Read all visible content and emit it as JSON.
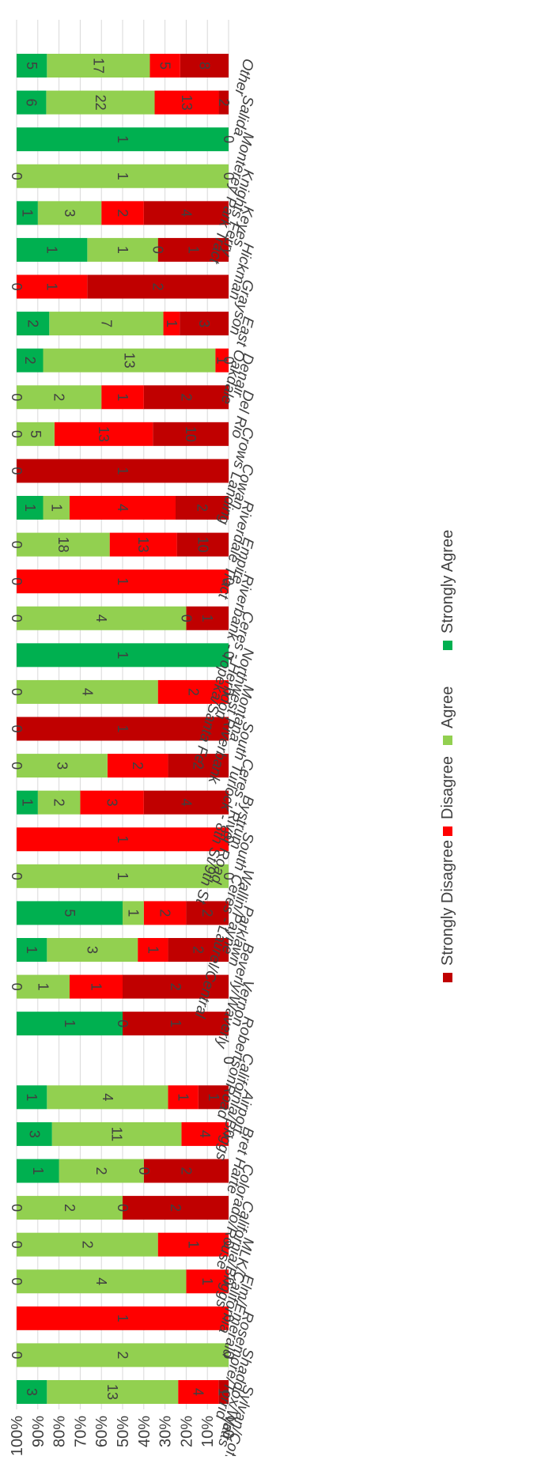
{
  "chart_data": {
    "type": "bar",
    "stacked": true,
    "percent_scale": true,
    "orientation": "rotated-90-clockwise",
    "title": "",
    "xlabel": "",
    "ylabel": "",
    "ylim": [
      0,
      100
    ],
    "y_ticks": [
      "0%",
      "10%",
      "20%",
      "30%",
      "40%",
      "50%",
      "60%",
      "70%",
      "80%",
      "90%",
      "100%"
    ],
    "grid": true,
    "legend_position": "bottom",
    "categories": [
      "Sylvan/Coffee",
      "Shaddox/Watts",
      "Rosemore/Torrid",
      "Elm/Emerald",
      "MLK/California",
      "California/Briggs",
      "Colorado/Rouse",
      "Bret Harte",
      "Airport",
      "California/Briggs",
      "RobertsonRoad",
      "Vernon",
      "Beverly/Waverly",
      "Parklawn",
      "Wallin/Payne",
      "South Ceres - Laurel/Central",
      "Bystrum",
      "Ceres - River Road",
      "South Turlock - 8th St/9th St",
      "Montana",
      "Northwest Riverbank",
      "Ceres - Herndon",
      "Riverbank - Topeka/Santa Fe",
      "Empire",
      "Riverdale Tract",
      "Cowan",
      "Crows Landing",
      "Del Rio",
      "Denair",
      "East Oakdale",
      "Grayson",
      "Hickman",
      "Keyes",
      "Knights Ferry",
      "Monterey Park Tract",
      "Salida",
      "Other"
    ],
    "series": [
      {
        "name": "Strongly Disagree",
        "color": "#c00000",
        "values": [
          1,
          0,
          0,
          0,
          0,
          2,
          2,
          0,
          1,
          0,
          1,
          2,
          2,
          2,
          0,
          0,
          4,
          2,
          1,
          0,
          0,
          1,
          0,
          10,
          2,
          1,
          10,
          2,
          0,
          3,
          2,
          1,
          4,
          0,
          0,
          2,
          8
        ]
      },
      {
        "name": "Disagree",
        "color": "#ff0000",
        "values": [
          4,
          0,
          1,
          1,
          1,
          0,
          0,
          4,
          1,
          0,
          0,
          1,
          1,
          2,
          0,
          1,
          3,
          2,
          0,
          2,
          0,
          0,
          1,
          13,
          4,
          0,
          13,
          1,
          1,
          1,
          1,
          0,
          2,
          0,
          0,
          13,
          5
        ]
      },
      {
        "name": "Agree",
        "color": "#92d050",
        "values": [
          13,
          2,
          0,
          4,
          2,
          2,
          2,
          11,
          4,
          0,
          0,
          1,
          3,
          1,
          1,
          0,
          2,
          3,
          0,
          4,
          0,
          4,
          0,
          18,
          1,
          0,
          5,
          2,
          13,
          7,
          0,
          1,
          3,
          1,
          0,
          22,
          17
        ]
      },
      {
        "name": "Strongly Agree",
        "color": "#00b050",
        "values": [
          3,
          0,
          0,
          0,
          0,
          0,
          1,
          3,
          1,
          0,
          1,
          0,
          1,
          5,
          0,
          0,
          1,
          0,
          0,
          0,
          1,
          0,
          0,
          0,
          1,
          0,
          0,
          0,
          2,
          2,
          0,
          1,
          1,
          0,
          1,
          6,
          5
        ]
      }
    ],
    "value_labels": [
      [
        "1",
        "4",
        "13",
        "3"
      ],
      [
        "0",
        "",
        "2",
        "0"
      ],
      [
        "0",
        "1",
        "",
        ""
      ],
      [
        "0",
        "1",
        "4",
        "0"
      ],
      [
        "0",
        "1",
        "2",
        "0"
      ],
      [
        "2",
        "0",
        "2",
        "0"
      ],
      [
        "2",
        "0",
        "2",
        "1"
      ],
      [
        "0",
        "4",
        "11",
        "3"
      ],
      [
        "1",
        "1",
        "4",
        "1"
      ],
      [
        "0",
        "",
        "",
        "0"
      ],
      [
        "1",
        "0",
        "",
        "1"
      ],
      [
        "2",
        "1",
        "1",
        "0"
      ],
      [
        "2",
        "1",
        "3",
        "1"
      ],
      [
        "2",
        "2",
        "1",
        "5"
      ],
      [
        "0",
        "",
        "1",
        "0"
      ],
      [
        "0",
        "1",
        "",
        ""
      ],
      [
        "4",
        "3",
        "2",
        "1"
      ],
      [
        "2",
        "2",
        "3",
        "0"
      ],
      [
        "1",
        "",
        "",
        "0"
      ],
      [
        "0",
        "2",
        "4",
        "0"
      ],
      [
        "0",
        "",
        "",
        "1"
      ],
      [
        "1",
        "0",
        "4",
        "0"
      ],
      [
        "0",
        "1",
        "",
        "0"
      ],
      [
        "10",
        "13",
        "18",
        "0"
      ],
      [
        "2",
        "4",
        "1",
        "1"
      ],
      [
        "1",
        "",
        "",
        "0"
      ],
      [
        "10",
        "13",
        "5",
        "0"
      ],
      [
        "2",
        "1",
        "2",
        "0"
      ],
      [
        "0",
        "1",
        "13",
        "2"
      ],
      [
        "3",
        "1",
        "7",
        "2"
      ],
      [
        "2",
        "1",
        "",
        "0"
      ],
      [
        "1",
        "0",
        "1",
        "1"
      ],
      [
        "4",
        "2",
        "3",
        "1"
      ],
      [
        "0",
        "",
        "1",
        "0"
      ],
      [
        "0",
        "",
        "",
        "1"
      ],
      [
        "2",
        "13",
        "22",
        "6"
      ],
      [
        "8",
        "5",
        "17",
        "5"
      ]
    ]
  }
}
